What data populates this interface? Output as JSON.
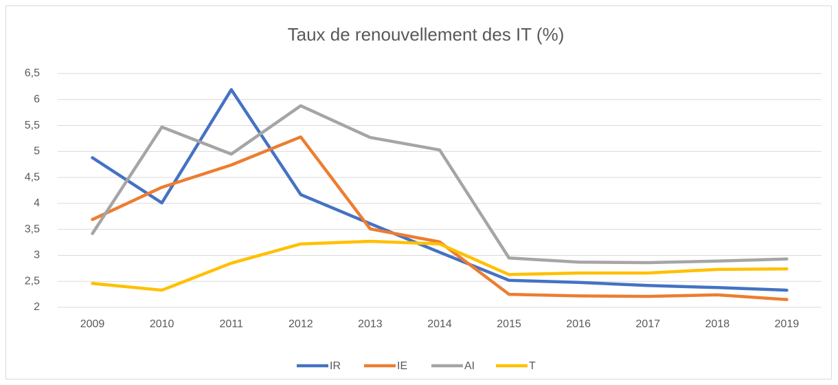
{
  "chart_data": {
    "type": "line",
    "title": "Taux de renouvellement des IT (%)",
    "categories": [
      "2009",
      "2010",
      "2011",
      "2012",
      "2013",
      "2014",
      "2015",
      "2016",
      "2017",
      "2018",
      "2019"
    ],
    "series": [
      {
        "name": "IR",
        "color": "#4472c4",
        "values": [
          4.88,
          4.01,
          6.19,
          4.17,
          3.61,
          3.06,
          2.52,
          2.48,
          2.42,
          2.38,
          2.33
        ]
      },
      {
        "name": "IE",
        "color": "#ed7d31",
        "values": [
          3.69,
          4.31,
          4.74,
          5.28,
          3.51,
          3.26,
          2.25,
          2.22,
          2.21,
          2.24,
          2.15
        ]
      },
      {
        "name": "AI",
        "color": "#a5a5a5",
        "values": [
          3.42,
          5.47,
          4.95,
          5.88,
          5.27,
          5.03,
          2.95,
          2.87,
          2.86,
          2.89,
          2.93
        ]
      },
      {
        "name": "T",
        "color": "#ffc000",
        "values": [
          2.46,
          2.33,
          2.85,
          3.22,
          3.27,
          3.22,
          2.63,
          2.66,
          2.66,
          2.73,
          2.74
        ]
      }
    ],
    "ylim": [
      2,
      6.5
    ],
    "yticks": [
      2,
      {
        "value": 2.5,
        "label": "2,5"
      },
      3,
      {
        "value": 3.5,
        "label": "3,5"
      },
      4,
      {
        "value": 4.5,
        "label": "4,5"
      },
      5,
      {
        "value": 5.5,
        "label": "5,5"
      },
      6,
      {
        "value": 6.5,
        "label": "6,5"
      }
    ],
    "grid": true,
    "legend": "bottom"
  }
}
